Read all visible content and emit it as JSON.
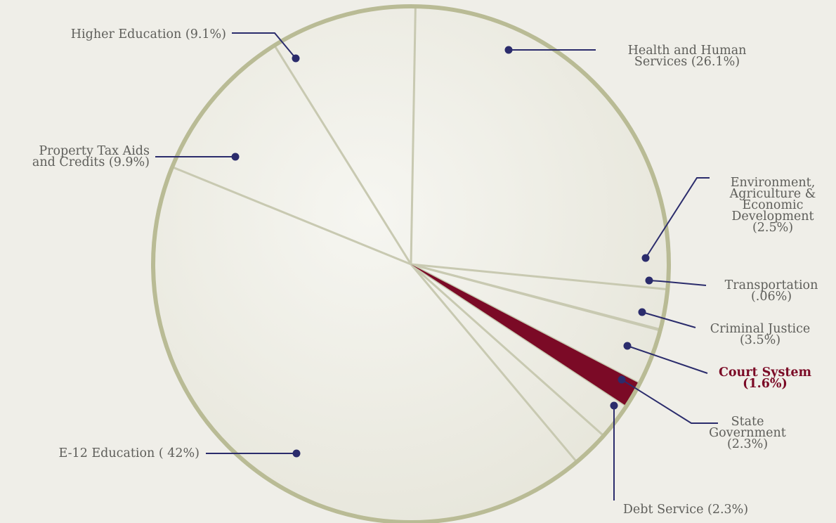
{
  "colors": {
    "background": "#efeee8",
    "slice_fill": "#e7e6db",
    "slice_center": "#f6f6f1",
    "divider": "#c8c9b1",
    "outline": "#b9bb95",
    "highlight": "#7b0a26",
    "leader": "#2b2c6c",
    "label_text": "#5e5e5a"
  },
  "chart_data": {
    "type": "pie",
    "title": "",
    "unit": "%",
    "highlighted": "Court System",
    "slices": [
      {
        "name": "Health and Human Services",
        "value": 26.1,
        "label_lines": [
          "Health and Human",
          "Services (26.1%)"
        ]
      },
      {
        "name": "Environment, Agriculture & Economic Development",
        "value": 2.5,
        "label_lines": [
          "Environment,",
          "Agriculture &",
          "Economic",
          "Development",
          "(2.5%)"
        ]
      },
      {
        "name": "Transportation",
        "value": 0.06,
        "label_lines": [
          "Transportation",
          "(.06%)"
        ]
      },
      {
        "name": "Criminal Justice",
        "value": 3.5,
        "label_lines": [
          "Criminal Justice",
          "(3.5%)"
        ]
      },
      {
        "name": "Court System",
        "value": 1.6,
        "label_lines": [
          "Court System",
          "(1.6%)"
        ]
      },
      {
        "name": "State Government",
        "value": 2.3,
        "label_lines": [
          "State",
          "Government",
          "(2.3%)"
        ]
      },
      {
        "name": "Debt Service",
        "value": 2.3,
        "label_lines": [
          "Debt Service (2.3%)"
        ]
      },
      {
        "name": "E-12 Education",
        "value": 42,
        "label_lines": [
          "E-12 Education ( 42%)"
        ]
      },
      {
        "name": "Property Tax Aids and Credits",
        "value": 9.9,
        "label_lines": [
          "Property Tax Aids",
          "and Credits (9.9%)"
        ]
      },
      {
        "name": "Higher Education",
        "value": 9.1,
        "label_lines": [
          "Higher Education (9.1%)"
        ]
      }
    ]
  }
}
